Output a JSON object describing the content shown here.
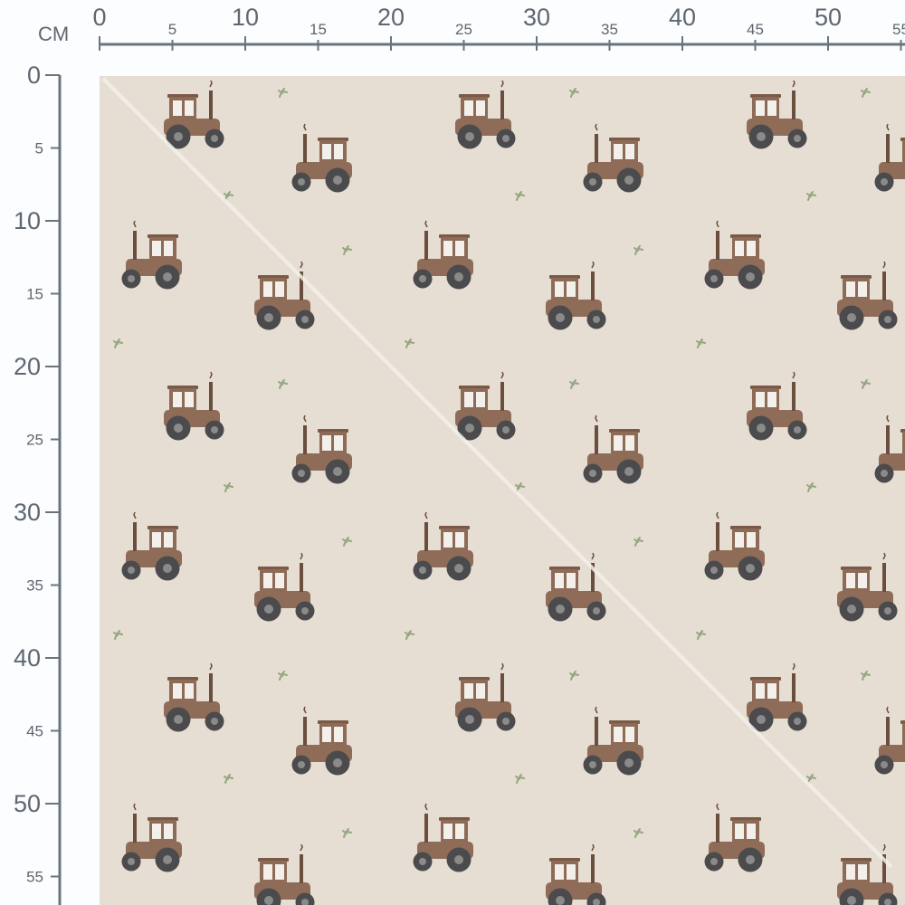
{
  "ruler": {
    "unit_label": "CM",
    "top_major": [
      "0",
      "10",
      "20",
      "30",
      "40",
      "50"
    ],
    "top_minor": [
      "5",
      "15",
      "25",
      "35",
      "45",
      "55"
    ],
    "left_major": [
      "0",
      "10",
      "20",
      "30",
      "40",
      "50"
    ],
    "left_minor": [
      "5",
      "15",
      "25",
      "35",
      "45",
      "55"
    ],
    "color": "#6b747d"
  },
  "fabric": {
    "pattern": "tractors",
    "background_color": "#e6ddd3",
    "tractor_color": "#8d6b57",
    "wheel_color": "#4b4b4d",
    "sprig_color": "#93a67f"
  }
}
